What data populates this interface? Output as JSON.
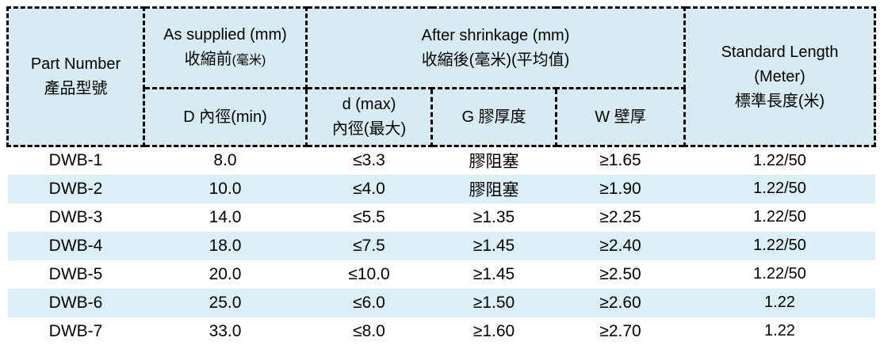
{
  "table": {
    "header": {
      "part_number": {
        "en": "Part Number",
        "zh": "產品型號"
      },
      "as_supplied": {
        "en": "As supplied (mm)",
        "zh": "收縮前",
        "zh_paren": "(毫米)"
      },
      "after_shrinkage": {
        "en": "After shrinkage (mm)",
        "zh": "收縮後(毫米)(平均值)"
      },
      "standard_length": {
        "en_line1": "Standard Length",
        "en_line2": "(Meter)",
        "zh": "標準長度(米)"
      },
      "d_min": "D 內徑(min)",
      "d_max_line1": "d (max)",
      "d_max_line2": "內徑(最大)",
      "g_label": "G 膠厚度",
      "w_label": "W 壁厚"
    },
    "rows": [
      {
        "part": "DWB-1",
        "d_min": "8.0",
        "d_max": "≤3.3",
        "g": "膠阻塞",
        "w": "≥1.65",
        "length": "1.22/50"
      },
      {
        "part": "DWB-2",
        "d_min": "10.0",
        "d_max": "≤4.0",
        "g": "膠阻塞",
        "w": "≥1.90",
        "length": "1.22/50"
      },
      {
        "part": "DWB-3",
        "d_min": "14.0",
        "d_max": "≤5.5",
        "g": "≥1.35",
        "w": "≥2.25",
        "length": "1.22/50"
      },
      {
        "part": "DWB-4",
        "d_min": "18.0",
        "d_max": "≤7.5",
        "g": "≥1.45",
        "w": "≥2.40",
        "length": "1.22/50"
      },
      {
        "part": "DWB-5",
        "d_min": "20.0",
        "d_max": "≤10.0",
        "g": "≥1.45",
        "w": "≥2.50",
        "length": "1.22/50"
      },
      {
        "part": "DWB-6",
        "d_min": "25.0",
        "d_max": "≤6.0",
        "g": "≥1.50",
        "w": "≥2.60",
        "length": "1.22"
      },
      {
        "part": "DWB-7",
        "d_min": "33.0",
        "d_max": "≤8.0",
        "g": "≥1.60",
        "w": "≥2.70",
        "length": "1.22"
      }
    ],
    "colors": {
      "header_bg": "#d9ebf2",
      "stripe_bg": "#ddeff6",
      "border": "#000000",
      "text": "#000000"
    }
  }
}
